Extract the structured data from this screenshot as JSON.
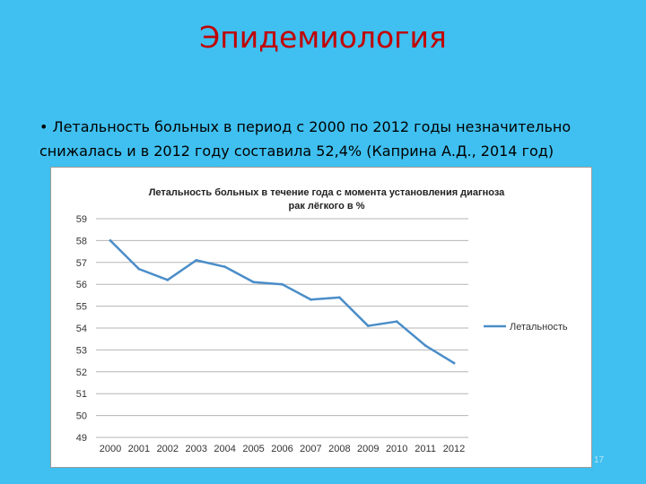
{
  "slide": {
    "title": "Эпидемиология",
    "bullet": "Летальность больных в период с 2000 по 2012 годы незначительно снижалась и в 2012 году составила 52,4% (Каприна А.Д., 2014 год)",
    "page_number": "17"
  },
  "chart_data": {
    "type": "line",
    "title": "Летальность больных в течение года с момента установления диагноза рак лёгкого в %",
    "categories": [
      "2000",
      "2001",
      "2002",
      "2003",
      "2004",
      "2005",
      "2006",
      "2007",
      "2008",
      "2009",
      "2010",
      "2011",
      "2012"
    ],
    "series": [
      {
        "name": "Летальность",
        "values": [
          58.0,
          56.7,
          56.2,
          57.1,
          56.8,
          56.1,
          56.0,
          55.3,
          55.4,
          54.1,
          54.3,
          53.2,
          52.4
        ],
        "color": "#4a8dc8"
      }
    ],
    "yticks": [
      49,
      50,
      51,
      52,
      53,
      54,
      55,
      56,
      57,
      58,
      59
    ],
    "ylim": [
      49,
      59
    ],
    "grid": true,
    "legend": "right"
  }
}
